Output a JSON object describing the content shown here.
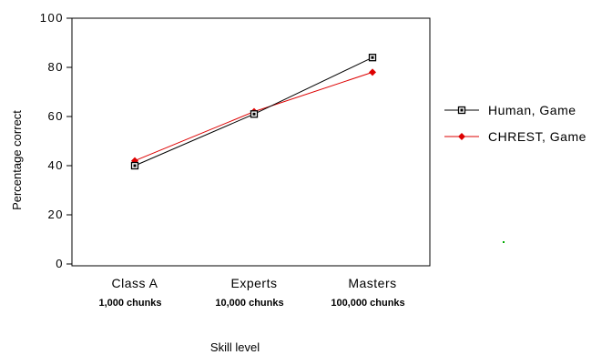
{
  "chart_data": {
    "type": "line",
    "categories": [
      "Class A",
      "Experts",
      "Masters"
    ],
    "category_sublabels": [
      "1,000 chunks",
      "10,000 chunks",
      "100,000 chunks"
    ],
    "yticks": [
      "0",
      "20",
      "40",
      "60",
      "80",
      "100"
    ],
    "ytick_values": [
      0,
      20,
      40,
      60,
      80,
      100
    ],
    "ylim": [
      0,
      100
    ],
    "xlabel": "Skill level",
    "ylabel": "Percentage correct",
    "legend_position": "right",
    "grid": false,
    "series": [
      {
        "name": "Human, Game",
        "values": [
          40,
          61,
          84
        ],
        "color": "#000000",
        "marker": "square"
      },
      {
        "name": "CHREST, Game",
        "values": [
          42,
          62,
          78
        ],
        "color": "#dd0000",
        "marker": "diamond"
      }
    ]
  }
}
